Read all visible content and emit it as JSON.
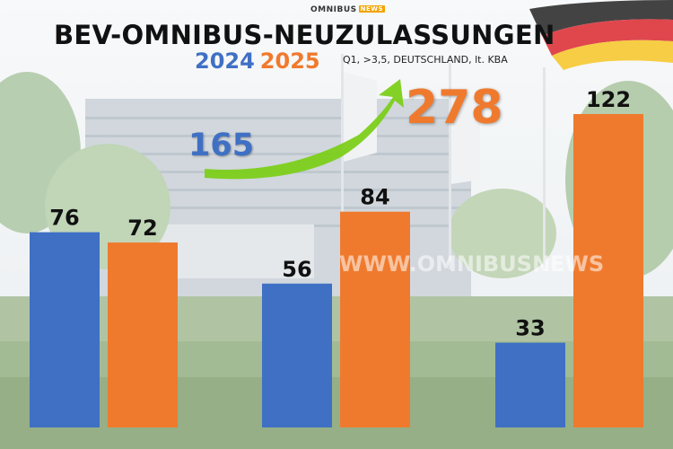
{
  "logo_text": "OMNIBUS",
  "logo_badge": "NEWS",
  "title": "BEV-OMNIBUS-NEUZULASSUNGEN",
  "subtitle": "Q1, >3,5, DEUTSCHLAND, lt. KBA",
  "totals": {
    "y2024": "165",
    "y2025": "278"
  },
  "watermark": "WWW.OMNIBUSNEWS",
  "colors": {
    "y2024": "#3f70c4",
    "y2025": "#ef7a2e",
    "arrow": "#7ccf1a"
  },
  "chart_data": {
    "type": "bar",
    "categories": [
      "",
      "",
      ""
    ],
    "series": [
      {
        "name": "2024",
        "values": [
          76,
          56,
          33
        ]
      },
      {
        "name": "2025",
        "values": [
          72,
          84,
          122
        ]
      }
    ],
    "ylim": [
      0,
      122
    ],
    "legend": "top",
    "grid": false
  }
}
